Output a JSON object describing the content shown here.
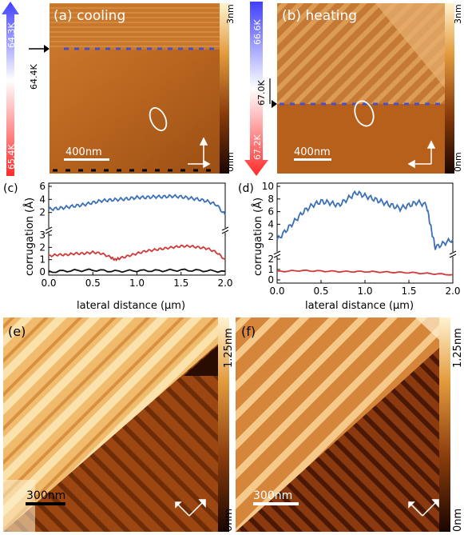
{
  "panels": {
    "a": {
      "label": "(a) cooling",
      "scalebar": "400nm",
      "colorbar_top": "3nm",
      "colorbar_bottom": "0nm",
      "temp_top": "64.3K",
      "temp_mid": "64.4K",
      "temp_bottom": "65.4K"
    },
    "b": {
      "label": "(b) heating",
      "scalebar": "400nm",
      "colorbar_top": "3nm",
      "colorbar_bottom": "0nm",
      "temp_top": "66.6K",
      "temp_mid": "67.0K",
      "temp_bottom": "67.2K"
    },
    "c": {
      "label": "(c)"
    },
    "d": {
      "label": "(d)"
    },
    "e": {
      "label": "(e)",
      "scalebar": "300nm",
      "colorbar_top": "1.25nm",
      "colorbar_bottom": "0nm"
    },
    "f": {
      "label": "(f)",
      "scalebar": "300nm",
      "colorbar_top": "1.25nm",
      "colorbar_bottom": "0nm"
    }
  },
  "colors": {
    "blue": "#3b6fb6",
    "red": "#d03a3a",
    "black": "#111111",
    "afm_dark": "#3a1404",
    "afm_mid": "#b5621e",
    "afm_light": "#fbe6b6"
  },
  "chart_data": [
    {
      "type": "line",
      "panel": "c",
      "xlabel": "lateral distance (µm)",
      "ylabel": "corrugation (Å)",
      "xlim": [
        0.0,
        2.0
      ],
      "xticks": [
        "0.0",
        "0.5",
        "1.0",
        "1.5",
        "2.0"
      ],
      "yticks_upper": [
        "2",
        "4",
        "6"
      ],
      "yticks_lower": [
        "0",
        "1",
        "2",
        "3"
      ],
      "series": [
        {
          "color": "#3b6fb6",
          "segment": "upper",
          "x": [
            0.0,
            0.1,
            0.2,
            0.3,
            0.4,
            0.5,
            0.6,
            0.7,
            0.8,
            0.9,
            1.0,
            1.1,
            1.2,
            1.3,
            1.4,
            1.5,
            1.6,
            1.7,
            1.8,
            1.9,
            2.0
          ],
          "y": [
            2.5,
            2.6,
            2.8,
            3.0,
            3.2,
            3.5,
            3.8,
            3.9,
            4.0,
            4.1,
            4.3,
            4.3,
            4.4,
            4.4,
            4.5,
            4.4,
            4.2,
            4.0,
            3.7,
            3.2,
            1.6
          ]
        },
        {
          "color": "#d03a3a",
          "segment": "lower",
          "x": [
            0.0,
            0.1,
            0.2,
            0.3,
            0.4,
            0.5,
            0.6,
            0.7,
            0.75,
            0.8,
            0.9,
            1.0,
            1.1,
            1.2,
            1.3,
            1.4,
            1.5,
            1.6,
            1.7,
            1.8,
            1.9,
            2.0
          ],
          "y": [
            1.3,
            1.4,
            1.4,
            1.5,
            1.5,
            1.6,
            1.5,
            1.2,
            1.0,
            1.1,
            1.3,
            1.5,
            1.7,
            1.8,
            1.9,
            2.0,
            2.1,
            2.1,
            2.0,
            1.9,
            1.6,
            1.0
          ]
        },
        {
          "color": "#111111",
          "segment": "lower",
          "x": [
            0.0,
            0.25,
            0.5,
            0.75,
            1.0,
            1.25,
            1.5,
            1.75,
            2.0
          ],
          "y": [
            0.0,
            0.1,
            0.15,
            0.05,
            0.1,
            0.1,
            0.15,
            0.1,
            0.05
          ]
        }
      ]
    },
    {
      "type": "line",
      "panel": "d",
      "xlabel": "lateral distance (µm)",
      "ylabel": "corrugation (Å)",
      "xlim": [
        0.0,
        2.0
      ],
      "xticks": [
        "0.0",
        "0.5",
        "1.0",
        "1.5",
        "2.0"
      ],
      "yticks_upper": [
        "2",
        "4",
        "6",
        "8",
        "10"
      ],
      "yticks_lower": [
        "0",
        "1",
        "2"
      ],
      "series": [
        {
          "color": "#3b6fb6",
          "segment": "upper",
          "x": [
            0.0,
            0.1,
            0.2,
            0.3,
            0.4,
            0.5,
            0.6,
            0.7,
            0.8,
            0.9,
            1.0,
            1.1,
            1.2,
            1.3,
            1.4,
            1.5,
            1.6,
            1.7,
            1.75,
            1.8,
            1.9,
            2.0
          ],
          "y": [
            1.5,
            3.0,
            4.5,
            6.0,
            7.0,
            7.6,
            7.4,
            7.0,
            8.0,
            9.0,
            8.5,
            8.0,
            7.5,
            7.0,
            6.5,
            7.0,
            7.5,
            7.0,
            3.5,
            0.3,
            1.0,
            1.6
          ]
        },
        {
          "color": "#d03a3a",
          "segment": "lower",
          "x": [
            0.0,
            0.25,
            0.5,
            0.75,
            1.0,
            1.25,
            1.5,
            1.75,
            2.0
          ],
          "y": [
            0.8,
            0.9,
            0.85,
            0.8,
            0.8,
            0.75,
            0.7,
            0.6,
            0.5
          ]
        }
      ]
    }
  ]
}
